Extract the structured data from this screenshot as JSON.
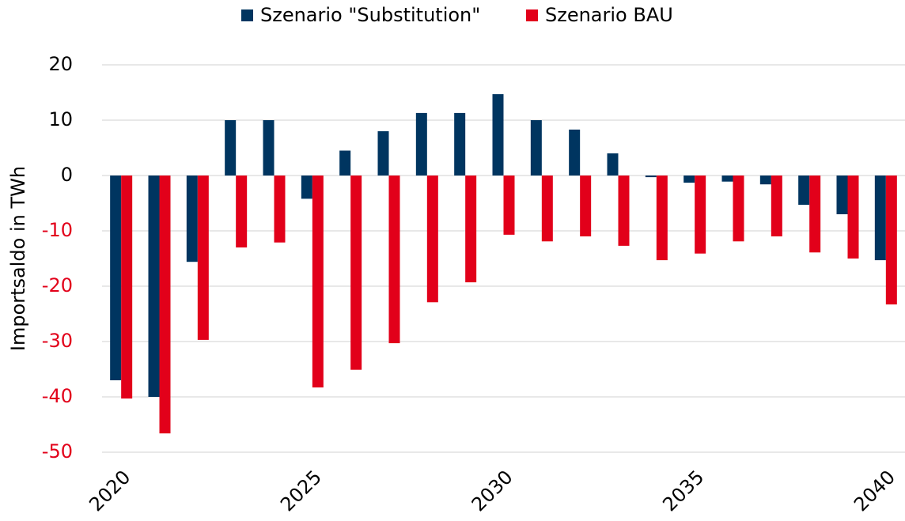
{
  "chart_data": {
    "type": "bar",
    "y_label": "Importsaldo in TWh",
    "categories": [
      "2020",
      null,
      null,
      null,
      null,
      "2025",
      null,
      null,
      null,
      null,
      "2030",
      null,
      null,
      null,
      null,
      "2035",
      null,
      null,
      null,
      null,
      "2040"
    ],
    "series": [
      {
        "name": "Szenario \"Substitution\"",
        "color": "#003560",
        "values": [
          -37,
          -40,
          -15.6,
          10,
          10,
          -4.2,
          4.5,
          8,
          11.3,
          11.3,
          14.7,
          10,
          8.3,
          4,
          -0.3,
          -1.3,
          -1.1,
          -1.6,
          -5.3,
          -7,
          -15.3
        ]
      },
      {
        "name": "Szenario BAU",
        "color": "#e2001a",
        "values": [
          -40.3,
          -46.6,
          -29.7,
          -13,
          -12.1,
          -38.3,
          -35.1,
          -30.3,
          -22.9,
          -19.3,
          -10.7,
          -11.9,
          -11,
          -12.7,
          -15.3,
          -14.1,
          -11.9,
          -11,
          -13.9,
          -15,
          -23.3
        ]
      }
    ],
    "ylim": [
      -50,
      20
    ],
    "yticks": [
      -50,
      -40,
      -30,
      -20,
      -10,
      0,
      10,
      20
    ],
    "grid": true,
    "legend": "top",
    "negative_tick_color": "#e2001a"
  }
}
